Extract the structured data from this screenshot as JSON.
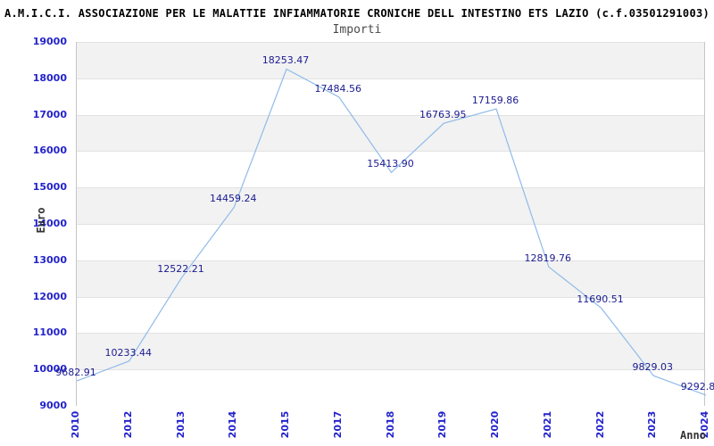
{
  "header": {
    "title": "A.M.I.C.I. ASSOCIAZIONE PER LE MALATTIE INFIAMMATORIE CRONICHE DELL INTESTINO ETS LAZIO (c.f.03501291003)",
    "subtitle": "Importi"
  },
  "chart_data": {
    "type": "line",
    "title": "Importi",
    "xlabel": "Anno",
    "ylabel": "Euro",
    "categories": [
      "2010",
      "2012",
      "2013",
      "2014",
      "2015",
      "2017",
      "2018",
      "2019",
      "2020",
      "2021",
      "2022",
      "2023",
      "2024"
    ],
    "values": [
      9682.91,
      10233.44,
      12522.21,
      14459.24,
      18253.47,
      17484.56,
      15413.9,
      16763.95,
      17159.86,
      12819.76,
      11690.51,
      9829.03,
      9292.8
    ],
    "point_labels": [
      "9682.91",
      "10233.44",
      "12522.21",
      "14459.24",
      "18253.47",
      "17484.56",
      "15413.90",
      "16763.95",
      "17159.86",
      "12819.76",
      "11690.51",
      "9829.03",
      "9292.8"
    ],
    "point_label_dx": [
      0,
      0,
      0,
      0,
      0,
      0,
      0,
      0,
      0,
      0,
      0,
      0,
      -8
    ],
    "ylim": [
      9000,
      19000
    ],
    "ytick_step": 1000,
    "yticks": [
      19000,
      18000,
      17000,
      16000,
      15000,
      14000,
      13000,
      12000,
      11000,
      10000,
      9000
    ],
    "x_tick_rotation": 90,
    "legend": null,
    "grid": true,
    "bands": "alternating-horizontal",
    "colors": {
      "line": "#8fbbe9",
      "tick_labels": "#2323cc",
      "point_labels": "#1a1a8f",
      "band_fill": "#f2f2f2",
      "gridline": "#e2e2e2",
      "plot_border": "#c6c6c6",
      "title": "#000000",
      "subtitle": "#4a4a4a",
      "axis_titles": "#333333",
      "background": "#ffffff"
    }
  }
}
